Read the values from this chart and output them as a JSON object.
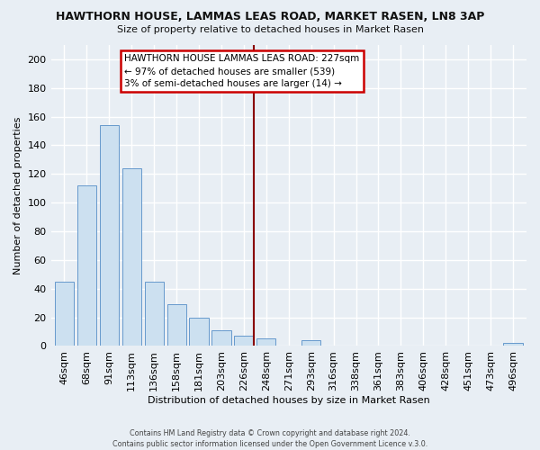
{
  "title": "HAWTHORN HOUSE, LAMMAS LEAS ROAD, MARKET RASEN, LN8 3AP",
  "subtitle": "Size of property relative to detached houses in Market Rasen",
  "xlabel": "Distribution of detached houses by size in Market Rasen",
  "ylabel": "Number of detached properties",
  "bar_color": "#cce0f0",
  "bar_edge_color": "#6699cc",
  "categories": [
    "46sqm",
    "68sqm",
    "91sqm",
    "113sqm",
    "136sqm",
    "158sqm",
    "181sqm",
    "203sqm",
    "226sqm",
    "248sqm",
    "271sqm",
    "293sqm",
    "316sqm",
    "338sqm",
    "361sqm",
    "383sqm",
    "406sqm",
    "428sqm",
    "451sqm",
    "473sqm",
    "496sqm"
  ],
  "values": [
    45,
    112,
    154,
    124,
    45,
    29,
    20,
    11,
    7,
    5,
    0,
    4,
    0,
    0,
    0,
    0,
    0,
    0,
    0,
    0,
    2
  ],
  "ylim": [
    0,
    210
  ],
  "yticks": [
    0,
    20,
    40,
    60,
    80,
    100,
    120,
    140,
    160,
    180,
    200
  ],
  "vline_color": "#880000",
  "annotation_title": "HAWTHORN HOUSE LAMMAS LEAS ROAD: 227sqm",
  "annotation_line1": "← 97% of detached houses are smaller (539)",
  "annotation_line2": "3% of semi-detached houses are larger (14) →",
  "footer1": "Contains HM Land Registry data © Crown copyright and database right 2024.",
  "footer2": "Contains public sector information licensed under the Open Government Licence v.3.0.",
  "background_color": "#e8eef4",
  "grid_color": "#ffffff"
}
